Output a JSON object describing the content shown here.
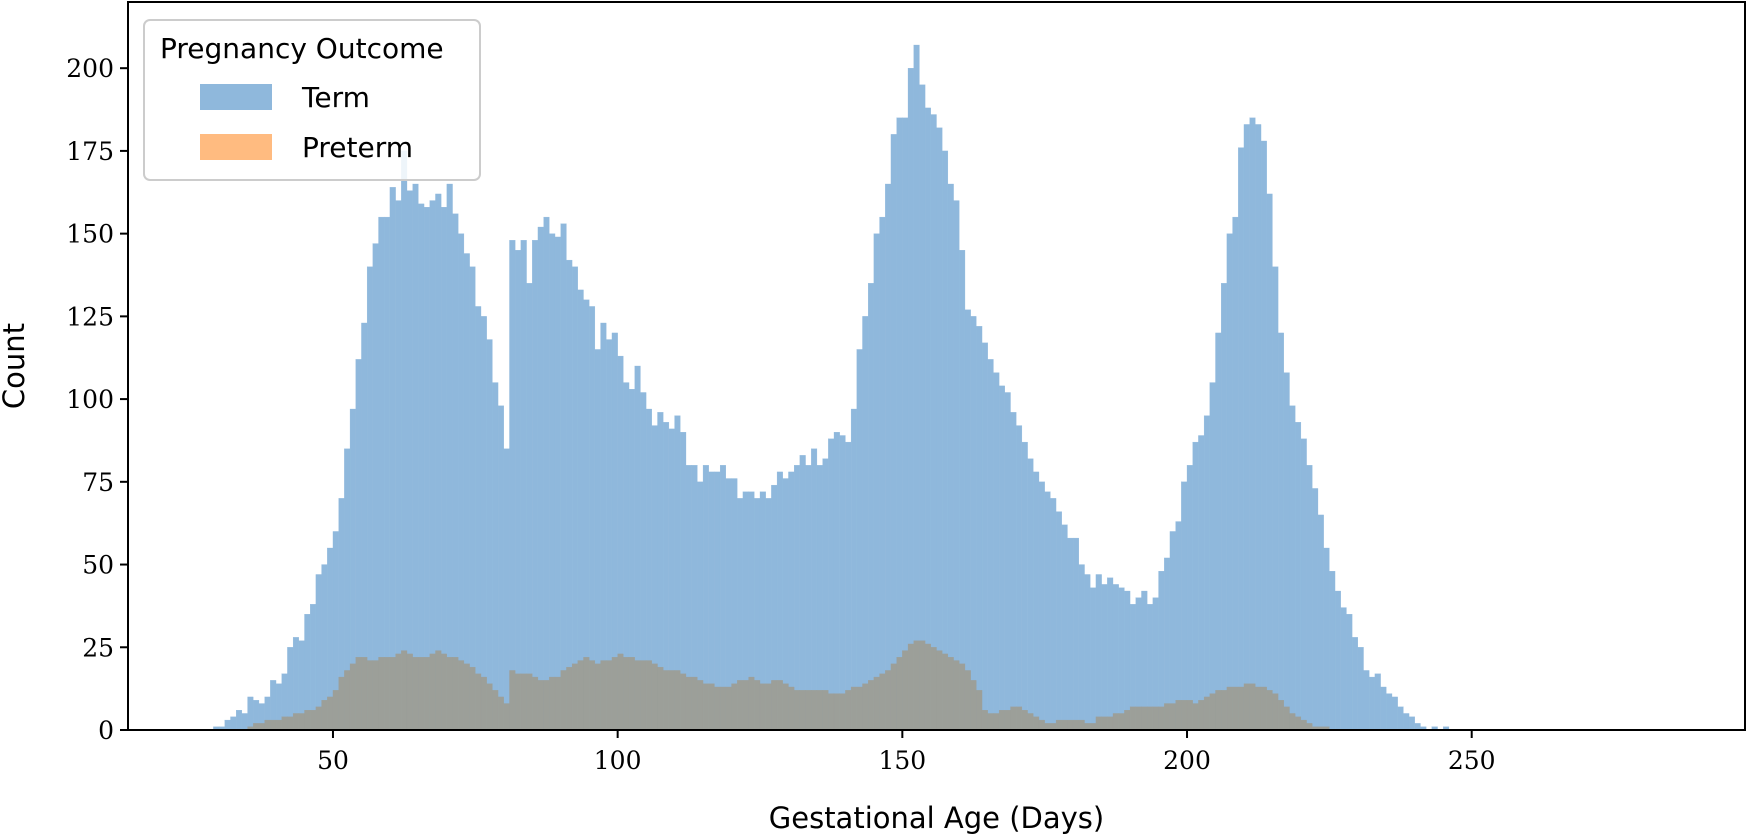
{
  "chart_data": {
    "type": "bar",
    "title": "",
    "xlabel": "Gestational Age (Days)",
    "ylabel": "Count",
    "xlim": [
      14,
      298
    ],
    "ylim": [
      0,
      220
    ],
    "xticks": [
      50,
      100,
      150,
      200,
      250
    ],
    "yticks": [
      0,
      25,
      50,
      75,
      100,
      125,
      150,
      175,
      200
    ],
    "grid": false,
    "bin_start": 24,
    "bin_width": 1,
    "legend": {
      "title": "Pregnancy Outcome",
      "placement": "top-left",
      "entries": [
        {
          "label": "Term",
          "color": "#8fb8dc"
        },
        {
          "label": "Preterm",
          "color": "#ffbb80"
        }
      ]
    },
    "colors": {
      "term": "#8fb8dc",
      "preterm": "#ffbb80",
      "overlap": "#9c9f99"
    },
    "series": [
      {
        "name": "Term",
        "values": [
          0,
          0,
          0,
          0,
          0,
          1,
          1,
          3,
          4,
          6,
          5,
          10,
          9,
          8,
          10,
          15,
          14,
          17,
          25,
          28,
          27,
          35,
          38,
          47,
          50,
          55,
          60,
          70,
          85,
          97,
          112,
          123,
          140,
          147,
          155,
          155,
          164,
          160,
          175,
          163,
          165,
          159,
          158,
          160,
          162,
          158,
          165,
          156,
          150,
          144,
          140,
          128,
          125,
          118,
          105,
          98,
          85,
          148,
          145,
          148,
          135,
          148,
          152,
          155,
          150,
          149,
          153,
          142,
          140,
          133,
          130,
          128,
          115,
          123,
          118,
          120,
          113,
          105,
          103,
          110,
          102,
          97,
          92,
          96,
          93,
          91,
          95,
          90,
          80,
          80,
          75,
          80,
          78,
          78,
          80,
          76,
          76,
          70,
          72,
          72,
          70,
          72,
          70,
          74,
          78,
          76,
          78,
          80,
          83,
          80,
          85,
          80,
          82,
          88,
          90,
          89,
          87,
          97,
          115,
          125,
          135,
          150,
          155,
          165,
          180,
          185,
          185,
          200,
          207,
          195,
          188,
          186,
          182,
          175,
          165,
          160,
          145,
          127,
          125,
          122,
          117,
          112,
          108,
          104,
          102,
          96,
          92,
          87,
          82,
          78,
          75,
          72,
          70,
          66,
          62,
          58,
          58,
          50,
          47,
          43,
          47,
          44,
          46,
          44,
          43,
          42,
          38,
          40,
          42,
          38,
          40,
          48,
          52,
          60,
          63,
          75,
          80,
          87,
          89,
          95,
          105,
          120,
          135,
          150,
          155,
          176,
          183,
          185,
          183,
          178,
          162,
          140,
          120,
          108,
          98,
          93,
          88,
          80,
          73,
          65,
          55,
          48,
          42,
          37,
          35,
          28,
          25,
          18,
          16,
          17,
          13,
          11,
          10,
          7,
          5,
          4,
          2,
          1,
          0,
          1,
          0,
          1
        ]
      },
      {
        "name": "Preterm",
        "values": [
          0,
          0,
          0,
          0,
          0,
          0,
          0,
          0,
          0,
          0,
          0,
          1,
          2,
          2,
          3,
          3,
          3,
          4,
          4,
          5,
          5,
          6,
          6,
          7,
          9,
          10,
          12,
          16,
          18,
          20,
          22,
          22,
          21,
          21,
          22,
          22,
          22,
          23,
          24,
          23,
          22,
          22,
          22,
          23,
          24,
          23,
          22,
          22,
          21,
          20,
          19,
          17,
          16,
          14,
          12,
          10,
          8,
          18,
          17,
          17,
          17,
          16,
          15,
          15,
          16,
          16,
          18,
          19,
          20,
          21,
          22,
          21,
          20,
          21,
          21,
          22,
          23,
          22,
          22,
          21,
          21,
          21,
          20,
          19,
          18,
          18,
          18,
          17,
          16,
          16,
          15,
          14,
          14,
          13,
          13,
          13,
          14,
          15,
          15,
          16,
          15,
          14,
          14,
          15,
          15,
          14,
          13,
          12,
          12,
          12,
          12,
          12,
          12,
          11,
          11,
          11,
          12,
          13,
          13,
          14,
          15,
          16,
          17,
          18,
          20,
          22,
          24,
          26,
          27,
          27,
          26,
          25,
          24,
          23,
          22,
          21,
          20,
          18,
          15,
          12,
          6,
          5,
          5,
          6,
          6,
          7,
          7,
          6,
          5,
          4,
          3,
          2,
          2,
          3,
          3,
          3,
          3,
          3,
          2,
          2,
          4,
          4,
          4,
          5,
          5,
          6,
          7,
          7,
          7,
          7,
          7,
          7,
          8,
          8,
          9,
          9,
          9,
          8,
          9,
          10,
          11,
          12,
          12,
          13,
          13,
          13,
          14,
          14,
          13,
          13,
          12,
          11,
          9,
          7,
          5,
          4,
          3,
          2,
          1,
          1,
          1,
          0,
          0,
          0,
          0,
          0,
          0,
          0,
          0,
          0,
          0,
          0,
          0,
          0,
          0,
          0,
          0,
          0,
          0,
          0,
          0,
          0
        ]
      }
    ]
  }
}
